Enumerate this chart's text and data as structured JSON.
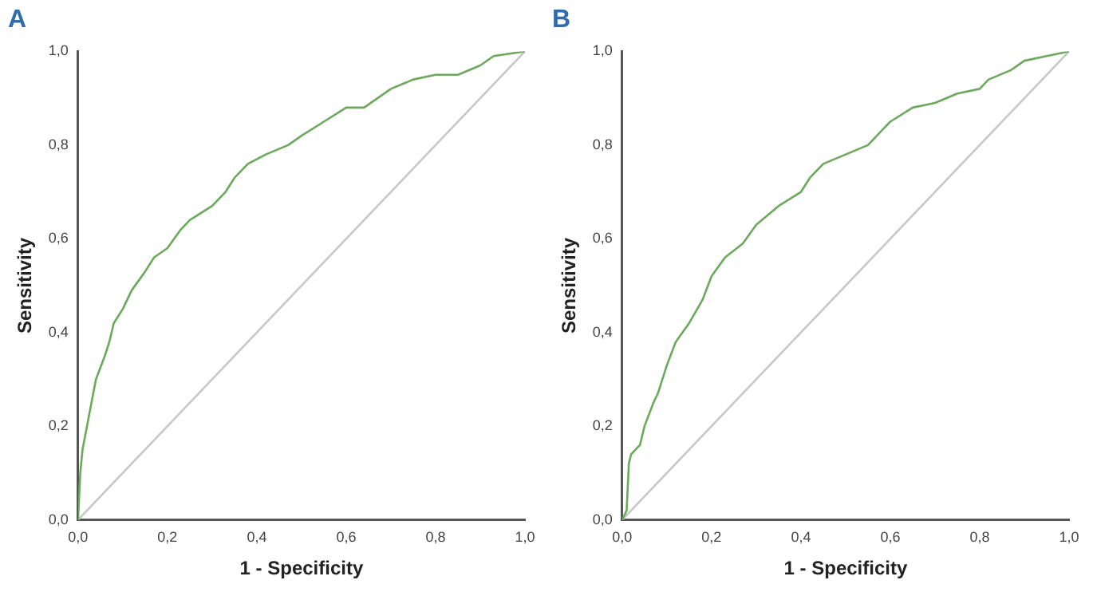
{
  "chart_data": [
    {
      "type": "line",
      "title": "A",
      "xlabel": "1 - Specificity",
      "ylabel": "Sensitivity",
      "xlim": [
        0,
        1
      ],
      "ylim": [
        0,
        1
      ],
      "xticks": [
        {
          "value": 0,
          "label": "0,0"
        },
        {
          "value": 0.2,
          "label": "0,2"
        },
        {
          "value": 0.4,
          "label": "0,4"
        },
        {
          "value": 0.6,
          "label": "0,6"
        },
        {
          "value": 0.8,
          "label": "0,8"
        },
        {
          "value": 1,
          "label": "1,0"
        }
      ],
      "yticks": [
        {
          "value": 0,
          "label": "0,0"
        },
        {
          "value": 0.2,
          "label": "0,2"
        },
        {
          "value": 0.4,
          "label": "0,4"
        },
        {
          "value": 0.6,
          "label": "0,6"
        },
        {
          "value": 0.8,
          "label": "0,8"
        },
        {
          "value": 1,
          "label": "1,0"
        }
      ],
      "grid": false,
      "legend": false,
      "marker": "none",
      "line_style": "solid",
      "series": [
        {
          "color": "#6aaa5a",
          "x": [
            0,
            0.005,
            0.01,
            0.02,
            0.03,
            0.04,
            0.06,
            0.07,
            0.08,
            0.1,
            0.12,
            0.15,
            0.17,
            0.2,
            0.23,
            0.25,
            0.3,
            0.33,
            0.35,
            0.38,
            0.42,
            0.47,
            0.5,
            0.55,
            0.6,
            0.64,
            0.67,
            0.7,
            0.75,
            0.8,
            0.85,
            0.9,
            0.93,
            1
          ],
          "values": [
            0,
            0.1,
            0.15,
            0.2,
            0.25,
            0.3,
            0.35,
            0.38,
            0.42,
            0.45,
            0.49,
            0.53,
            0.56,
            0.58,
            0.62,
            0.64,
            0.67,
            0.7,
            0.73,
            0.76,
            0.78,
            0.8,
            0.82,
            0.85,
            0.88,
            0.88,
            0.9,
            0.92,
            0.94,
            0.95,
            0.95,
            0.97,
            0.99,
            1
          ]
        },
        {
          "color": "#c8c8c8",
          "x": [
            0,
            1
          ],
          "values": [
            0,
            1
          ]
        }
      ]
    },
    {
      "type": "line",
      "title": "B",
      "xlabel": "1 - Specificity",
      "ylabel": "Sensitivity",
      "xlim": [
        0,
        1
      ],
      "ylim": [
        0,
        1
      ],
      "xticks": [
        {
          "value": 0,
          "label": "0,0"
        },
        {
          "value": 0.2,
          "label": "0,2"
        },
        {
          "value": 0.4,
          "label": "0,4"
        },
        {
          "value": 0.6,
          "label": "0,6"
        },
        {
          "value": 0.8,
          "label": "0,8"
        },
        {
          "value": 1,
          "label": "1,0"
        }
      ],
      "yticks": [
        {
          "value": 0,
          "label": "0,0"
        },
        {
          "value": 0.2,
          "label": "0,2"
        },
        {
          "value": 0.4,
          "label": "0,4"
        },
        {
          "value": 0.6,
          "label": "0,6"
        },
        {
          "value": 0.8,
          "label": "0,8"
        },
        {
          "value": 1,
          "label": "1,0"
        }
      ],
      "grid": false,
      "legend": false,
      "marker": "none",
      "line_style": "solid",
      "series": [
        {
          "color": "#6aaa5a",
          "x": [
            0,
            0.01,
            0.015,
            0.02,
            0.04,
            0.05,
            0.07,
            0.08,
            0.1,
            0.12,
            0.15,
            0.18,
            0.2,
            0.23,
            0.27,
            0.3,
            0.35,
            0.4,
            0.42,
            0.45,
            0.5,
            0.55,
            0.58,
            0.6,
            0.65,
            0.7,
            0.75,
            0.8,
            0.82,
            0.87,
            0.9,
            0.95,
            1
          ],
          "values": [
            0,
            0.02,
            0.12,
            0.14,
            0.16,
            0.2,
            0.25,
            0.27,
            0.33,
            0.38,
            0.42,
            0.47,
            0.52,
            0.56,
            0.59,
            0.63,
            0.67,
            0.7,
            0.73,
            0.76,
            0.78,
            0.8,
            0.83,
            0.85,
            0.88,
            0.89,
            0.91,
            0.92,
            0.94,
            0.96,
            0.98,
            0.99,
            1
          ]
        },
        {
          "color": "#c8c8c8",
          "x": [
            0,
            1
          ],
          "values": [
            0,
            1
          ]
        }
      ]
    }
  ]
}
